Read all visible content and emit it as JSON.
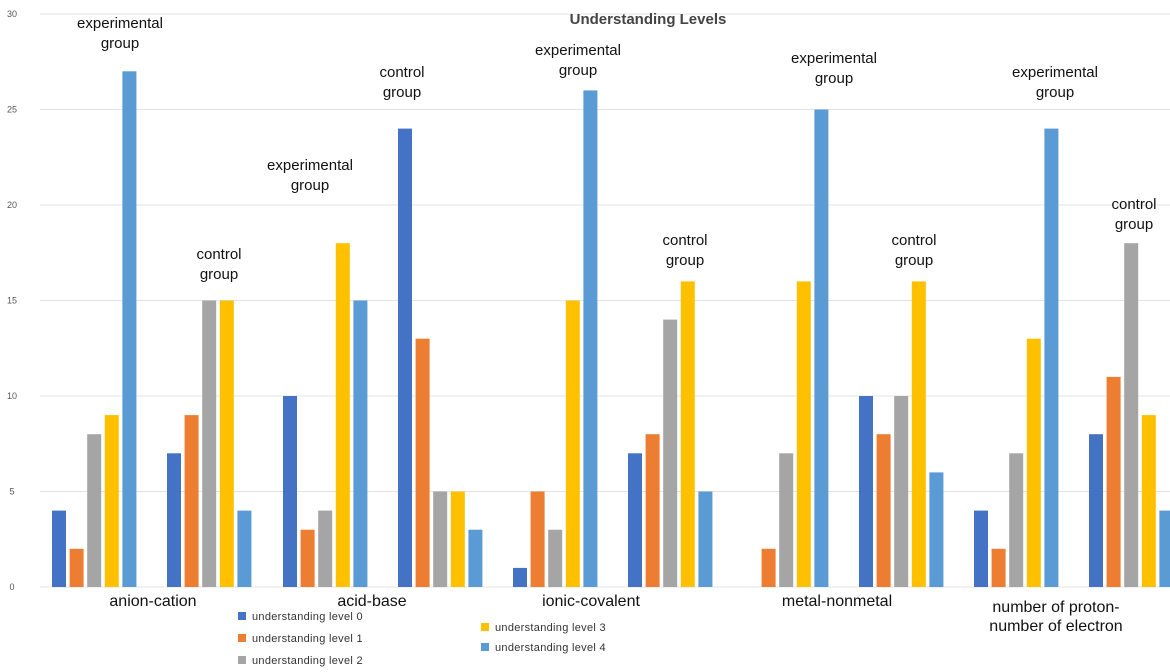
{
  "chart_data": {
    "type": "bar",
    "title": "Understanding Levels",
    "xlabel": "",
    "ylabel": "",
    "ylim": [
      0,
      30
    ],
    "yticks": [
      "0",
      "5",
      "10",
      "15",
      "20",
      "25",
      "30"
    ],
    "grid": true,
    "legend_position": "bottom",
    "categories": [
      "anion-cation",
      "acid-base",
      "ionic-covalent",
      "metal-nonmetal",
      "number of proton-\nnumber of electron"
    ],
    "groups": [
      "experimental group",
      "control group"
    ],
    "series": [
      {
        "name": "understanding level 0",
        "color": "#4472C4",
        "values": [
          [
            4,
            7
          ],
          [
            10,
            24
          ],
          [
            1,
            7
          ],
          [
            0,
            10
          ],
          [
            4,
            8
          ]
        ]
      },
      {
        "name": "understanding level 1",
        "color": "#ED7D31",
        "values": [
          [
            2,
            9
          ],
          [
            3,
            13
          ],
          [
            5,
            8
          ],
          [
            2,
            8
          ],
          [
            2,
            11
          ]
        ]
      },
      {
        "name": "understanding level 2",
        "color": "#A5A5A5",
        "values": [
          [
            8,
            15
          ],
          [
            4,
            5
          ],
          [
            3,
            14
          ],
          [
            7,
            10
          ],
          [
            7,
            18
          ]
        ]
      },
      {
        "name": "understanding level 3",
        "color": "#FFC000",
        "values": [
          [
            9,
            15
          ],
          [
            18,
            5
          ],
          [
            15,
            16
          ],
          [
            16,
            16
          ],
          [
            13,
            9
          ]
        ]
      },
      {
        "name": "understanding level 4",
        "color": "#5B9BD5",
        "values": [
          [
            27,
            4
          ],
          [
            15,
            3
          ],
          [
            26,
            5
          ],
          [
            25,
            6
          ],
          [
            24,
            4
          ]
        ]
      }
    ],
    "annotations": [
      {
        "text": "experimental\ngroup",
        "category": 0,
        "group": 0
      },
      {
        "text": "control\ngroup",
        "category": 0,
        "group": 1
      },
      {
        "text": "experimental\ngroup",
        "category": 1,
        "group": 0
      },
      {
        "text": "control\ngroup",
        "category": 1,
        "group": 1
      },
      {
        "text": "experimental\ngroup",
        "category": 2,
        "group": 0
      },
      {
        "text": "control\ngroup",
        "category": 2,
        "group": 1
      },
      {
        "text": "experimental\ngroup",
        "category": 3,
        "group": 0
      },
      {
        "text": "control\ngroup",
        "category": 3,
        "group": 1
      },
      {
        "text": "experimental\ngroup",
        "category": 4,
        "group": 0
      },
      {
        "text": "control\ngroup",
        "category": 4,
        "group": 1
      }
    ]
  }
}
